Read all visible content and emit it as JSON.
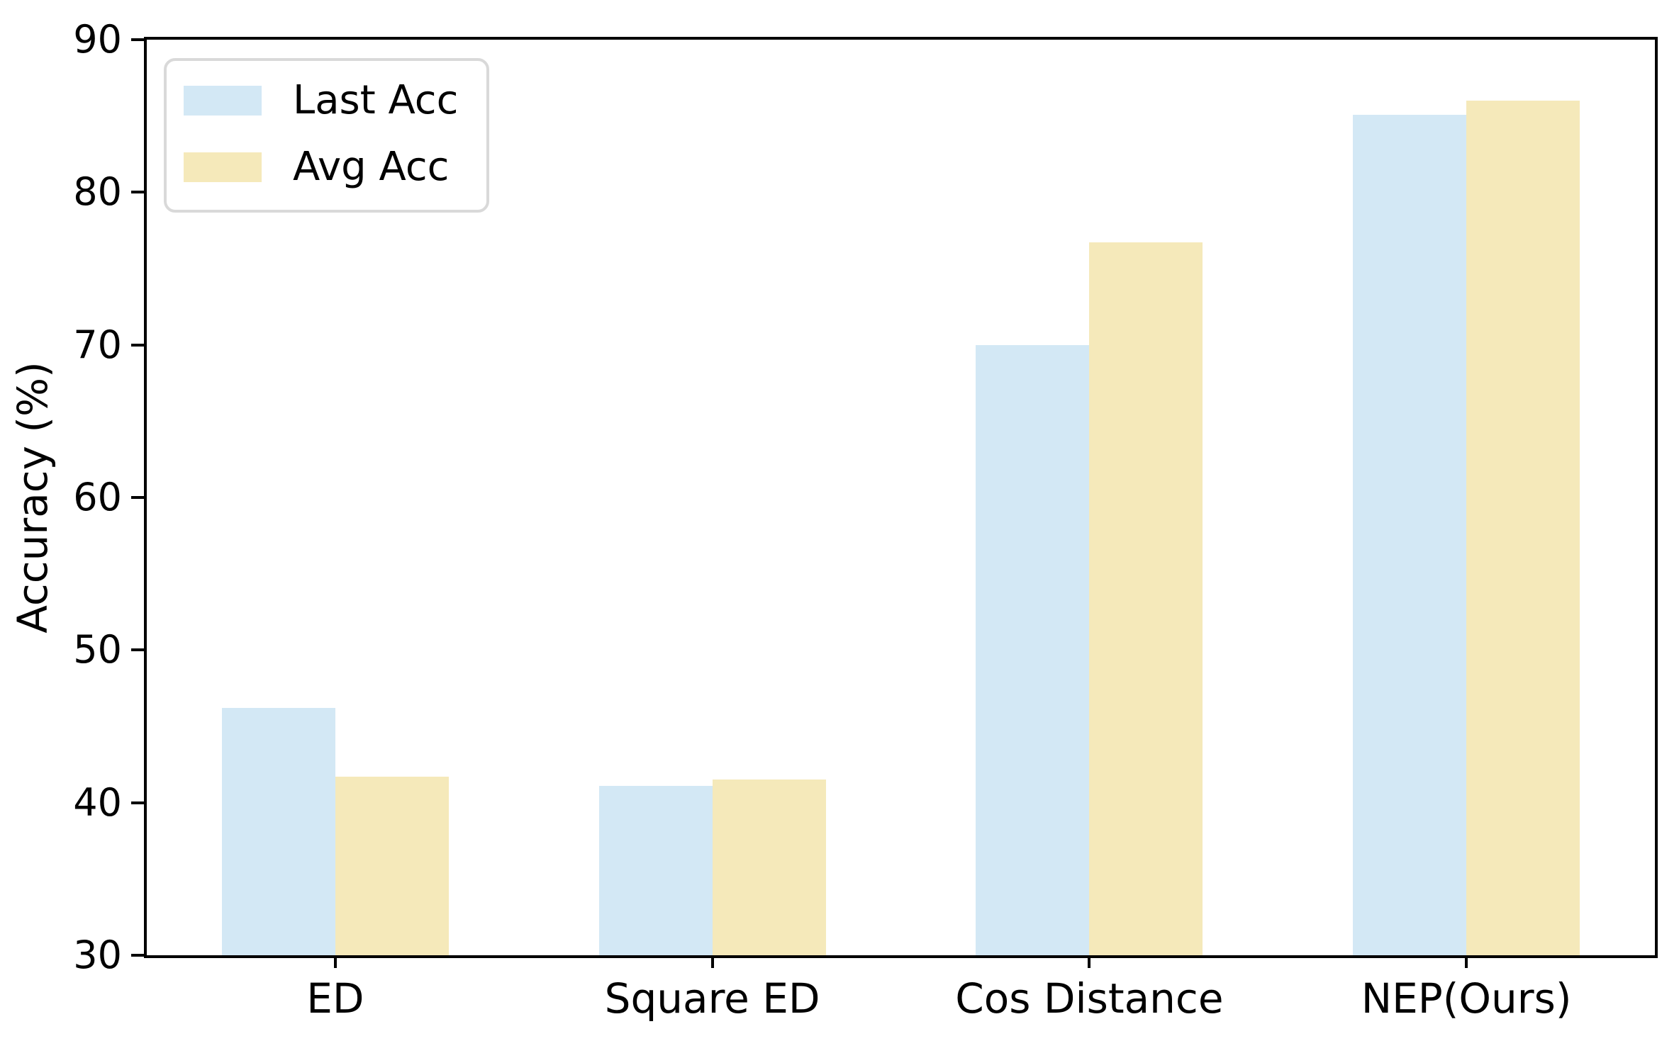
{
  "figure": {
    "background": "#ffffff",
    "axis_color": "#000000"
  },
  "chart_data": {
    "type": "bar",
    "categories": [
      "ED",
      "Square ED",
      "Cos Distance",
      "NEP(Ours)"
    ],
    "series": [
      {
        "name": "Last Acc",
        "color": "#D3E8F5",
        "values": [
          46.2,
          41.1,
          70.0,
          85.1
        ]
      },
      {
        "name": "Avg Acc",
        "color": "#F5E9BA",
        "values": [
          41.7,
          41.5,
          76.7,
          86.0
        ]
      }
    ],
    "title": "",
    "xlabel": "",
    "ylabel": "Accuracy (%)",
    "ylim": [
      30,
      90
    ],
    "yticks": [
      30,
      40,
      50,
      60,
      70,
      80,
      90
    ],
    "legend_position": "upper left",
    "grid": false
  }
}
